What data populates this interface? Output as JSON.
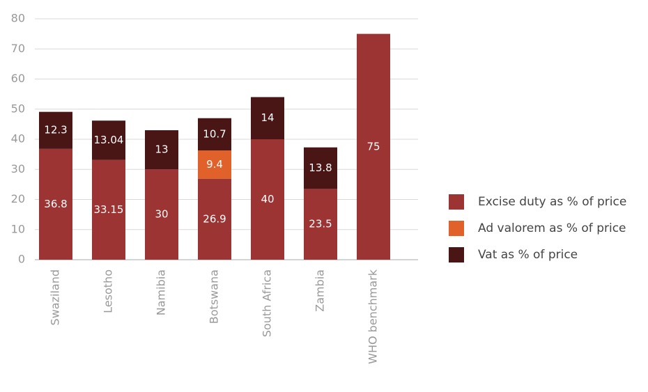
{
  "chart_data": {
    "type": "stacked_bar",
    "categories": [
      "Swaziland",
      "Lesotho",
      "Namibia",
      "Botswana",
      "South Africa",
      "Zambia",
      "WHO benchmark"
    ],
    "series": [
      {
        "name": "Excise duty as % of price",
        "color": "#9b3432",
        "values": [
          36.8,
          33.15,
          30,
          26.9,
          40,
          23.5,
          75
        ]
      },
      {
        "name": "Ad valorem as % of price",
        "color": "#e0622a",
        "values": [
          null,
          null,
          null,
          9.4,
          null,
          null,
          null
        ]
      },
      {
        "name": "Vat as % of price",
        "color": "#4a1515",
        "values": [
          12.3,
          13.04,
          13,
          10.7,
          14,
          13.8,
          null
        ]
      }
    ],
    "ylim": [
      0,
      80
    ],
    "yticks": [
      0,
      10,
      20,
      30,
      40,
      50,
      60,
      70,
      80
    ],
    "grid": true,
    "legend": "right"
  }
}
